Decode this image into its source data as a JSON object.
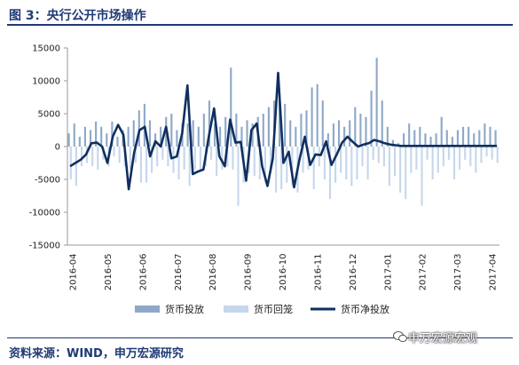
{
  "header": {
    "title": "图 3：央行公开市场操作"
  },
  "footer": {
    "source": "资料来源：WIND，申万宏源研究",
    "watermark": "申万宏源宏观"
  },
  "colors": {
    "title": "#1f3a75",
    "injection": "#8fa8c8",
    "withdrawal": "#c6d7ec",
    "net": "#0f2f5f"
  },
  "chart_data": {
    "type": "bar",
    "ylim": [
      -15000,
      15000
    ],
    "yticks": [
      -15000,
      -10000,
      -5000,
      0,
      5000,
      10000,
      15000
    ],
    "ytick_labels": [
      "-15000",
      "-10000",
      "-5000",
      "0",
      "5000",
      "10000",
      "15000"
    ],
    "xtick_labels": [
      "2016-04",
      "2016-05",
      "2016-06",
      "2016-07",
      "2016-08",
      "2016-09",
      "2016-10",
      "2016-11",
      "2016-12",
      "2017-01",
      "2017-02",
      "2017-03",
      "2017-04"
    ],
    "grid": false,
    "legend_position": "bottom",
    "series": [
      {
        "name": "货币投放",
        "type": "bar",
        "values": [
          2000,
          3500,
          1500,
          3000,
          2500,
          3800,
          3000,
          2000,
          3800,
          1500,
          2500,
          3000,
          4000,
          5500,
          6500,
          4000,
          2000,
          3000,
          4500,
          5000,
          2500,
          3500,
          3500,
          4000,
          3000,
          5000,
          7000,
          3500,
          3000,
          4500,
          12000,
          5000,
          3000,
          4000,
          3500,
          4500,
          5000,
          6000,
          7000,
          8000,
          6500,
          4000,
          3000,
          5000,
          5500,
          9000,
          9500,
          7000,
          2000,
          3500,
          4000,
          3000,
          4000,
          6000,
          5000,
          4500,
          8500,
          13500,
          7000,
          3000,
          1000,
          500,
          2000,
          3500,
          2500,
          3000,
          2000,
          1500,
          2000,
          4500,
          2500,
          1500,
          2500,
          3000,
          3000,
          2000,
          2500,
          3500,
          3000,
          2500
        ]
      },
      {
        "name": "货币回笼",
        "type": "bar",
        "values": [
          -5000,
          -6000,
          -3000,
          -2500,
          -3000,
          -3500,
          -2000,
          -3000,
          -1500,
          -2500,
          -3000,
          -3500,
          -2500,
          -5500,
          -5500,
          -4000,
          -3000,
          -2000,
          -3000,
          -4000,
          -5000,
          -3500,
          -6000,
          -3500,
          -3500,
          -3000,
          -2000,
          -4500,
          -3500,
          -3000,
          -3500,
          -9000,
          -5500,
          -4000,
          -4500,
          -5000,
          -5500,
          -4000,
          -7000,
          -6500,
          -5500,
          -6000,
          -7000,
          -4000,
          -3500,
          -6500,
          -3000,
          -5000,
          -8000,
          -5500,
          -4000,
          -5000,
          -6000,
          -5000,
          -3000,
          -5000,
          -2000,
          -2500,
          -3000,
          -6000,
          -4500,
          -7000,
          -8000,
          -4000,
          -3500,
          -9000,
          -2000,
          -5000,
          -4000,
          -3000,
          -2000,
          -5000,
          -3500,
          -2000,
          -3000,
          -4000,
          -2500,
          -1500,
          -2000,
          -2500
        ]
      },
      {
        "name": "货币净投放",
        "type": "line",
        "x": [
          0,
          1,
          2,
          3,
          4,
          5,
          6,
          7,
          8,
          9,
          10,
          11,
          12,
          13,
          14,
          15,
          16,
          17,
          18,
          19,
          20,
          21,
          22,
          23,
          24,
          25,
          26,
          27,
          28,
          29,
          30,
          31,
          32,
          33,
          34,
          35,
          36,
          37,
          38,
          39,
          40,
          41,
          42,
          43,
          44,
          45,
          46,
          47,
          48,
          49,
          50,
          51,
          52,
          53,
          54,
          55,
          56,
          57,
          58,
          59,
          60,
          61,
          62,
          63,
          64,
          65,
          66,
          67,
          68,
          69,
          70,
          71,
          72,
          73,
          74,
          75,
          76,
          77,
          78,
          79,
          80
        ],
        "values": [
          -3000,
          -2500,
          -2000,
          -1200,
          500,
          600,
          0,
          -2500,
          1500,
          3300,
          1800,
          -6500,
          -1000,
          2500,
          3000,
          -1500,
          800,
          0,
          3000,
          -1800,
          -1500,
          2000,
          9300,
          -4200,
          -3800,
          -3500,
          1500,
          5800,
          -1500,
          -3000,
          4100,
          600,
          700,
          -5200,
          2500,
          3500,
          -3000,
          -6000,
          -1800,
          11200,
          -2500,
          -800,
          -6200,
          -2000,
          1500,
          -2800,
          -1200,
          -1300,
          800,
          -2800,
          -1200,
          600,
          1500,
          700,
          0,
          300,
          500,
          1000,
          800,
          500,
          300,
          200,
          100,
          100,
          100,
          100,
          100,
          100,
          100,
          100,
          100,
          100,
          100,
          100,
          100,
          100,
          100,
          100,
          100,
          100,
          100
        ]
      }
    ]
  }
}
